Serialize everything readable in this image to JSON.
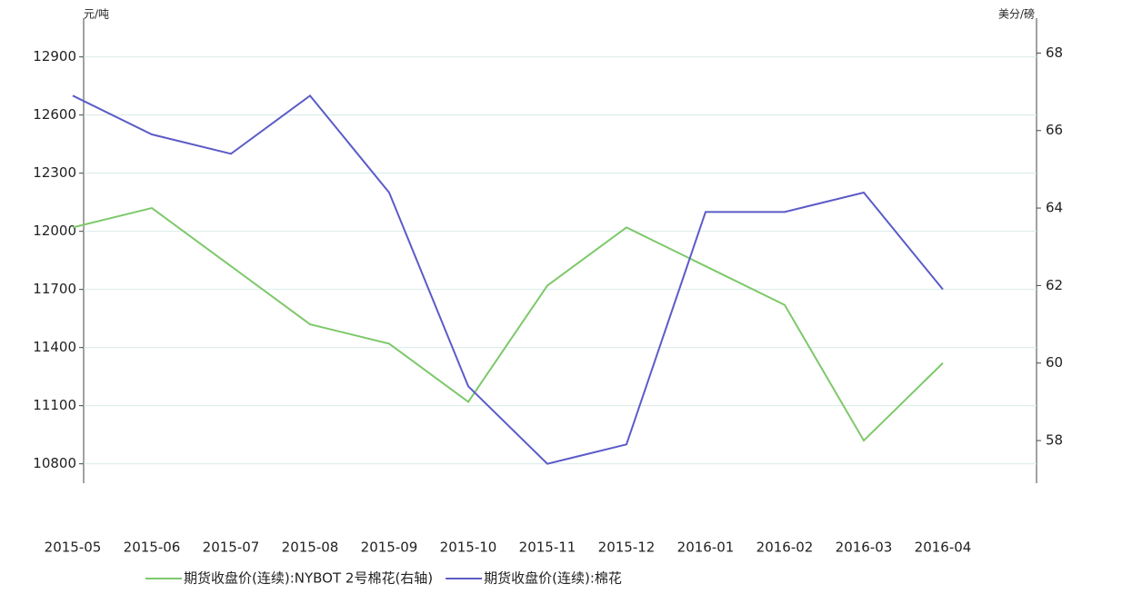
{
  "chart_data": {
    "type": "line",
    "y_label": "元/吨",
    "y2_label": "美分/磅",
    "categories": [
      "2015-05",
      "2015-06",
      "2015-07",
      "2015-08",
      "2015-09",
      "2015-10",
      "2015-11",
      "2015-12",
      "2016-01",
      "2016-02",
      "2016-03",
      "2016-04"
    ],
    "series": [
      {
        "name": "期货收盘价(连续):NYBOT 2号棉花(右轴)",
        "color": "#7dc86a",
        "axis": "y2",
        "values": [
          63.5,
          64,
          62.5,
          61,
          60.5,
          59,
          62,
          63.5,
          62.5,
          61.5,
          58,
          60
        ]
      },
      {
        "name": "期货收盘价(连续):棉花",
        "color": "#5b5bc8",
        "values": [
          12700,
          12500,
          12400,
          12700,
          12200,
          11200,
          10800,
          10900,
          12100,
          12100,
          12200,
          11700
        ]
      }
    ],
    "ylim": [
      10700,
      13100
    ],
    "yticks": [
      10800,
      11100,
      11400,
      11700,
      12000,
      12300,
      12600,
      12900
    ],
    "y2lim": [
      56.9,
      68.9
    ],
    "y2ticks": [
      58,
      60,
      62,
      64,
      66,
      68
    ],
    "grid": true
  }
}
